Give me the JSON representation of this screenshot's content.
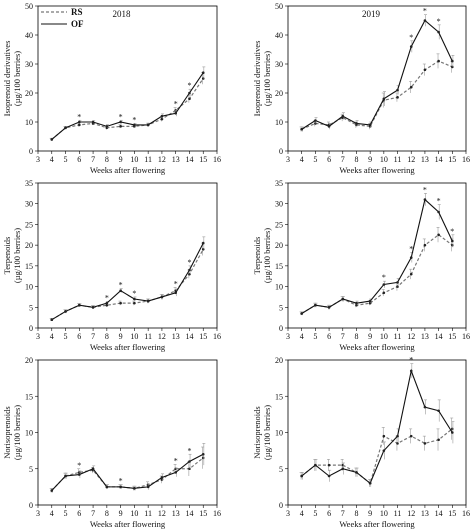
{
  "legend": {
    "rs": "RS",
    "of": "OF"
  },
  "chart_data": [
    {
      "type": "line",
      "title": "2018",
      "xlabel": "Weeks after flowering",
      "ylabel": [
        "Isoprenoid derivatives",
        "(µg/100 berries)"
      ],
      "xlim": [
        3,
        16
      ],
      "ylim": [
        0,
        50
      ],
      "xticks": [
        "3",
        "4",
        "5",
        "6",
        "7",
        "8",
        "9",
        "10",
        "11",
        "12",
        "13",
        "14",
        "15",
        "16"
      ],
      "yticks": [
        "0",
        "10",
        "20",
        "30",
        "40",
        "50"
      ],
      "x": [
        4,
        5,
        6,
        7,
        8,
        9,
        10,
        11,
        12,
        13,
        14,
        15
      ],
      "series": [
        {
          "name": "RS",
          "values": [
            4,
            8,
            9,
            9.5,
            8,
            8.5,
            8.5,
            9,
            11,
            14,
            18,
            25
          ],
          "err": [
            0.4,
            0.5,
            0.6,
            0.5,
            0.6,
            0.6,
            0.5,
            0.6,
            0.8,
            1,
            1.3,
            2
          ]
        },
        {
          "name": "OF",
          "values": [
            4,
            8,
            10,
            10,
            8.5,
            10,
            9,
            9,
            12,
            13,
            20,
            27
          ],
          "err": [
            0.4,
            0.5,
            0.6,
            0.5,
            0.6,
            0.6,
            0.5,
            0.6,
            0.8,
            1,
            1.3,
            2
          ]
        }
      ],
      "sig_x": [
        6,
        9,
        10,
        13,
        14
      ]
    },
    {
      "type": "line",
      "title": "2019",
      "xlabel": "Weeks after flowering",
      "ylabel": [
        "Isoprenoid derivatives",
        "(µg/100 berries)"
      ],
      "xlim": [
        3,
        16
      ],
      "ylim": [
        0,
        50
      ],
      "xticks": [
        "3",
        "4",
        "5",
        "6",
        "7",
        "8",
        "9",
        "10",
        "11",
        "12",
        "13",
        "14",
        "15",
        "16"
      ],
      "yticks": [
        "0",
        "10",
        "20",
        "30",
        "40",
        "50"
      ],
      "x": [
        4,
        5,
        6,
        7,
        8,
        9,
        10,
        11,
        12,
        13,
        14,
        15
      ],
      "series": [
        {
          "name": "RS",
          "values": [
            7.5,
            9.5,
            9,
            11.5,
            9,
            8.5,
            17.5,
            18.5,
            22,
            28,
            31,
            29
          ],
          "err": [
            0.8,
            1,
            1,
            1.2,
            1,
            1,
            2.5,
            1.5,
            2,
            2,
            2.5,
            2
          ]
        },
        {
          "name": "OF",
          "values": [
            7.5,
            10.5,
            8.5,
            12,
            9.5,
            9,
            18,
            21,
            36,
            45,
            41,
            31
          ],
          "err": [
            0.8,
            1,
            1,
            1.2,
            1,
            1,
            2.5,
            1.5,
            2,
            2,
            2.5,
            2
          ]
        }
      ],
      "sig_x": [
        12,
        13,
        14
      ]
    },
    {
      "type": "line",
      "title": "",
      "xlabel": "Weeks after flowering",
      "ylabel": [
        "Terpenoids",
        "(µg/100 berries)"
      ],
      "xlim": [
        3,
        16
      ],
      "ylim": [
        0,
        35
      ],
      "xticks": [
        "3",
        "4",
        "5",
        "6",
        "7",
        "8",
        "9",
        "10",
        "11",
        "12",
        "13",
        "14",
        "15",
        "16"
      ],
      "yticks": [
        "0",
        "5",
        "10",
        "15",
        "20",
        "25",
        "30",
        "35"
      ],
      "x": [
        4,
        5,
        6,
        7,
        8,
        9,
        10,
        11,
        12,
        13,
        14,
        15
      ],
      "series": [
        {
          "name": "RS",
          "values": [
            2,
            4,
            5.5,
            5,
            5.5,
            6,
            6,
            6.5,
            7.5,
            9,
            13,
            19
          ],
          "err": [
            0.3,
            0.4,
            0.4,
            0.4,
            0.4,
            0.5,
            0.5,
            0.5,
            0.6,
            0.8,
            1,
            1.5
          ]
        },
        {
          "name": "OF",
          "values": [
            2,
            4,
            5.5,
            5,
            6,
            9,
            7,
            6.5,
            7.5,
            8.5,
            14,
            20.5
          ],
          "err": [
            0.3,
            0.4,
            0.4,
            0.4,
            0.4,
            0.5,
            0.5,
            0.5,
            0.6,
            0.8,
            1,
            1.5
          ]
        }
      ],
      "sig_x": [
        8,
        9,
        10,
        13,
        14
      ]
    },
    {
      "type": "line",
      "title": "",
      "xlabel": "Weeks after flowering",
      "ylabel": [
        "Terpenoids",
        "(µg/100 berries)"
      ],
      "xlim": [
        3,
        16
      ],
      "ylim": [
        0,
        35
      ],
      "xticks": [
        "3",
        "4",
        "5",
        "6",
        "7",
        "8",
        "9",
        "10",
        "11",
        "12",
        "13",
        "14",
        "15",
        "16"
      ],
      "yticks": [
        "0",
        "5",
        "10",
        "15",
        "20",
        "25",
        "30",
        "35"
      ],
      "x": [
        4,
        5,
        6,
        7,
        8,
        9,
        10,
        11,
        12,
        13,
        14,
        15
      ],
      "series": [
        {
          "name": "RS",
          "values": [
            3.5,
            5.5,
            5,
            7,
            5.5,
            6,
            8.5,
            10,
            13,
            20,
            22.5,
            20
          ],
          "err": [
            0.4,
            0.5,
            0.5,
            0.6,
            0.5,
            0.5,
            0.8,
            1,
            1.2,
            1.5,
            1.8,
            1.5
          ]
        },
        {
          "name": "OF",
          "values": [
            3.5,
            5.5,
            5,
            7,
            6,
            6.5,
            10.5,
            11,
            17,
            31,
            28,
            21
          ],
          "err": [
            0.4,
            0.5,
            0.5,
            0.6,
            0.5,
            0.5,
            0.8,
            1,
            1.2,
            1.5,
            1.8,
            1.5
          ]
        }
      ],
      "sig_x": [
        10,
        12,
        13,
        14,
        15
      ]
    },
    {
      "type": "line",
      "title": "",
      "xlabel": "Weeks after flowering",
      "ylabel": [
        "Norisoprenoids",
        "(µg/100 berries)"
      ],
      "xlim": [
        3,
        16
      ],
      "ylim": [
        0,
        20
      ],
      "xticks": [
        "3",
        "4",
        "5",
        "6",
        "7",
        "8",
        "9",
        "10",
        "11",
        "12",
        "13",
        "14",
        "15",
        "16"
      ],
      "yticks": [
        "0",
        "5",
        "10",
        "15",
        "20"
      ],
      "x": [
        4,
        5,
        6,
        7,
        8,
        9,
        10,
        11,
        12,
        13,
        14,
        15
      ],
      "series": [
        {
          "name": "RS",
          "values": [
            2,
            4,
            4.5,
            4.8,
            2.5,
            2.5,
            2.3,
            2.8,
            3.5,
            5,
            5,
            6.5
          ],
          "err": [
            0.3,
            0.4,
            0.5,
            0.4,
            0.3,
            0.3,
            0.3,
            0.4,
            0.5,
            0.6,
            1,
            1.5
          ]
        },
        {
          "name": "OF",
          "values": [
            2,
            4,
            4.2,
            5,
            2.5,
            2.5,
            2.3,
            2.5,
            3.8,
            4.5,
            6,
            7
          ],
          "err": [
            0.3,
            0.4,
            0.5,
            0.4,
            0.3,
            0.3,
            0.3,
            0.4,
            0.5,
            0.6,
            1,
            1.5
          ]
        }
      ],
      "sig_x": [
        6,
        9,
        13,
        14
      ]
    },
    {
      "type": "line",
      "title": "",
      "xlabel": "Weeks after flowering",
      "ylabel": [
        "Norisoprenoids",
        "(µg/100 berries)"
      ],
      "xlim": [
        3,
        16
      ],
      "ylim": [
        0,
        20
      ],
      "xticks": [
        "3",
        "4",
        "5",
        "6",
        "7",
        "8",
        "9",
        "10",
        "11",
        "12",
        "13",
        "14",
        "15",
        "16"
      ],
      "yticks": [
        "0",
        "5",
        "10",
        "15",
        "20"
      ],
      "x": [
        4,
        5,
        6,
        7,
        8,
        9,
        10,
        11,
        12,
        13,
        14,
        15
      ],
      "series": [
        {
          "name": "RS",
          "values": [
            4,
            5.5,
            5.5,
            5.5,
            4.5,
            3,
            9.5,
            8.5,
            9.5,
            8.5,
            9,
            10.5
          ],
          "err": [
            0.5,
            0.8,
            0.8,
            0.8,
            0.6,
            0.5,
            1.2,
            1,
            1,
            1,
            1.5,
            1.5
          ]
        },
        {
          "name": "OF",
          "values": [
            4,
            5.5,
            4,
            5,
            4.5,
            3,
            7.5,
            9.5,
            18.5,
            13.5,
            13,
            10
          ],
          "err": [
            0.5,
            0.8,
            0.8,
            0.8,
            0.6,
            0.5,
            1.2,
            1,
            1,
            1,
            1.5,
            1.5
          ]
        }
      ],
      "sig_x": [
        12
      ]
    }
  ]
}
